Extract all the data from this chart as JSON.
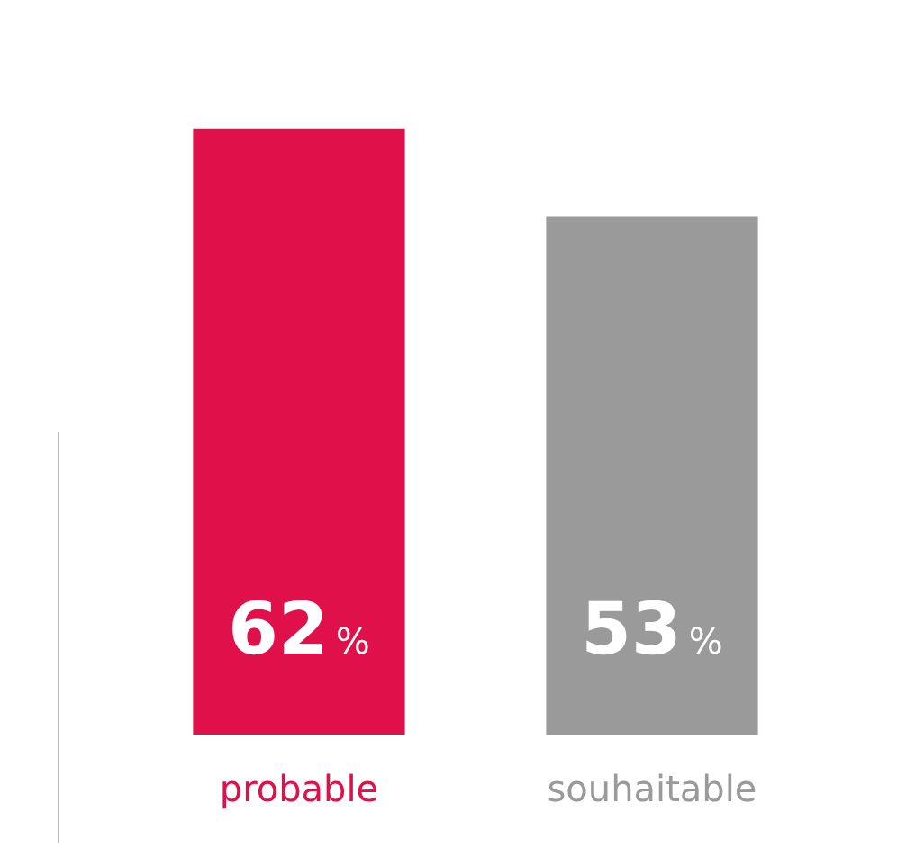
{
  "chart_data": {
    "type": "bar",
    "categories": [
      "probable",
      "souhaitable"
    ],
    "values": [
      62,
      53
    ],
    "colors": [
      "#e0104a",
      "#9a9a9a"
    ],
    "value_labels": [
      "62%",
      "53%"
    ],
    "tick_labels": "x",
    "grid": false,
    "legend": false
  }
}
